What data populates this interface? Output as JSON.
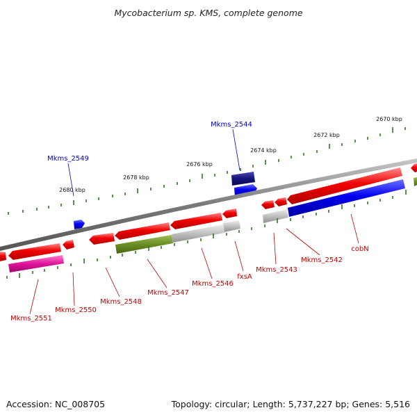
{
  "title": "Mycobacterium sp. KMS, complete genome",
  "footer": {
    "accession": "Accession: NC_008705",
    "summary": "Topology: circular; Length: 5,737,227 bp; Genes: 5,516"
  },
  "kbp_ticks": [
    "2670 kbp",
    "2672 kbp",
    "2674 kbp",
    "2676 kbp",
    "2678 kbp",
    "2680 kbp"
  ],
  "genes_forward": [
    {
      "label": "Mkms_2549",
      "color": "#0000cc"
    },
    {
      "label": "Mkms_2544",
      "color": "#0000cc"
    }
  ],
  "genes_reverse": [
    {
      "label": "Mkms_2551",
      "color": "#c00000"
    },
    {
      "label": "Mkms_2550",
      "color": "#c00000"
    },
    {
      "label": "Mkms_2548",
      "color": "#c00000"
    },
    {
      "label": "Mkms_2547",
      "color": "#c00000"
    },
    {
      "label": "Mkms_2546",
      "color": "#c00000"
    },
    {
      "label": "fxsA",
      "color": "#c00000"
    },
    {
      "label": "Mkms_2543",
      "color": "#c00000"
    },
    {
      "label": "Mkms_2542",
      "color": "#c00000"
    },
    {
      "label": "cobN",
      "color": "#c00000"
    }
  ],
  "colors": {
    "backbone": "#8a8a8a",
    "tick": "#2a7a1a",
    "gene_red": "#e00000",
    "gene_blue": "#0000ee",
    "gene_navy": "#101080",
    "gene_olive": "#6b8e23",
    "gene_grey": "#bbbbbb",
    "gene_magenta": "#e0149a"
  }
}
